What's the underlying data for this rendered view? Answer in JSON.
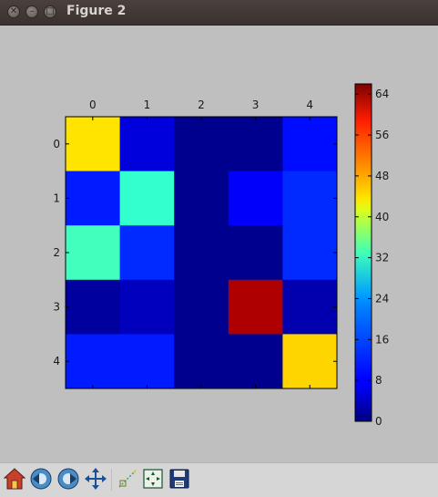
{
  "window": {
    "title": "Figure 2"
  },
  "chart_data": {
    "type": "heatmap",
    "x_ticks": [
      "0",
      "1",
      "2",
      "3",
      "4"
    ],
    "y_ticks": [
      "0",
      "1",
      "2",
      "3",
      "4"
    ],
    "matrix": [
      [
        43,
        6,
        1,
        1,
        9
      ],
      [
        10,
        28,
        1,
        8,
        11
      ],
      [
        29,
        11,
        1,
        1,
        11
      ],
      [
        2,
        4,
        1,
        63,
        3
      ],
      [
        10,
        10,
        1,
        1,
        44
      ]
    ],
    "colorbar": {
      "min": 0,
      "max": 66,
      "ticks": [
        "0",
        "8",
        "16",
        "24",
        "32",
        "40",
        "48",
        "56",
        "64"
      ],
      "colormap": "jet"
    }
  },
  "toolbar": {
    "buttons": [
      {
        "name": "home",
        "icon": "home-icon"
      },
      {
        "name": "back",
        "icon": "back-arrow-icon"
      },
      {
        "name": "forward",
        "icon": "forward-arrow-icon"
      },
      {
        "name": "pan",
        "icon": "pan-arrows-icon"
      },
      {
        "name": "zoom",
        "icon": "zoom-rect-icon"
      },
      {
        "name": "configure-subplots",
        "icon": "subplots-icon"
      },
      {
        "name": "save",
        "icon": "floppy-disk-icon"
      }
    ]
  }
}
